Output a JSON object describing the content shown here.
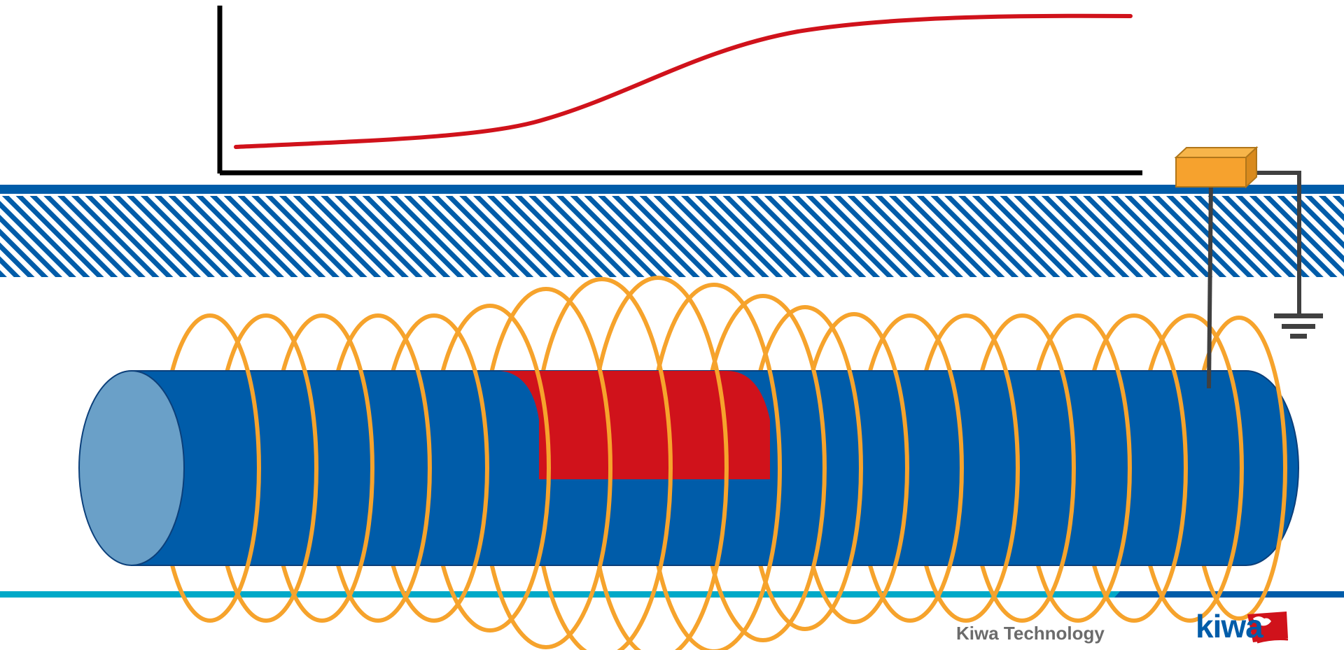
{
  "footer": {
    "company_label": "Kiwa Technology",
    "logo_text": "kiwa"
  },
  "colors": {
    "pipe": "#005ca9",
    "pipe_end": "#6aa0c8",
    "defect": "#d0121b",
    "field_coil": "#f6a32c",
    "curve": "#d0121b",
    "axes": "#000000",
    "ground_hatch": "#005ca9",
    "sensor_box": "#f6a22e",
    "wire": "#404040",
    "bottom_line": "#00a9c8"
  },
  "icons": {
    "sensor": "sensor-box-icon",
    "ground": "ground-symbol-icon",
    "logo": "kiwa-logo-icon"
  }
}
